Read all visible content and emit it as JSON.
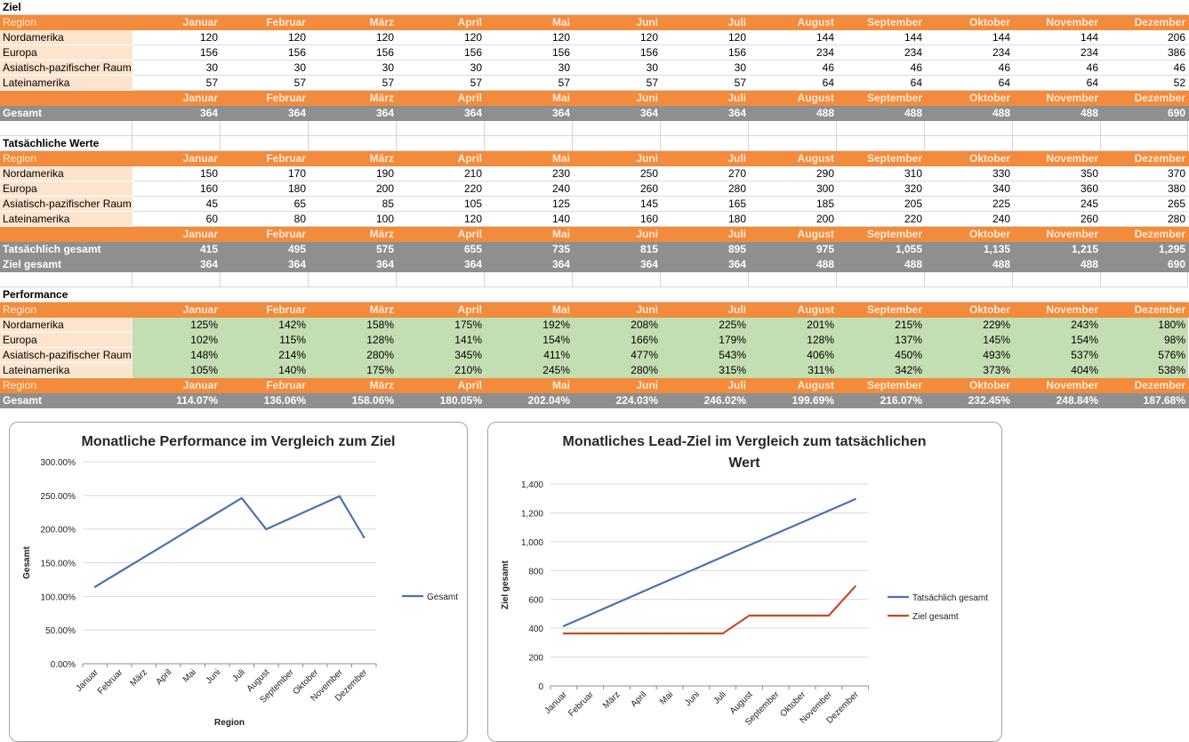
{
  "months": [
    "Januar",
    "Februar",
    "März",
    "April",
    "Mai",
    "Juni",
    "Juli",
    "August",
    "September",
    "Oktober",
    "November",
    "Dezember"
  ],
  "region_label": "Region",
  "ziel": {
    "title": "Ziel",
    "rows": [
      {
        "region": "Nordamerika",
        "values": [
          "120",
          "120",
          "120",
          "120",
          "120",
          "120",
          "120",
          "144",
          "144",
          "144",
          "144",
          "206"
        ]
      },
      {
        "region": "Europa",
        "values": [
          "156",
          "156",
          "156",
          "156",
          "156",
          "156",
          "156",
          "234",
          "234",
          "234",
          "234",
          "386"
        ]
      },
      {
        "region": "Asiatisch-pazifischer Raum",
        "values": [
          "30",
          "30",
          "30",
          "30",
          "30",
          "30",
          "30",
          "46",
          "46",
          "46",
          "46",
          "46"
        ]
      },
      {
        "region": "Lateinamerika",
        "values": [
          "57",
          "57",
          "57",
          "57",
          "57",
          "57",
          "57",
          "64",
          "64",
          "64",
          "64",
          "52"
        ]
      }
    ],
    "total_label": "Gesamt",
    "total": [
      "364",
      "364",
      "364",
      "364",
      "364",
      "364",
      "364",
      "488",
      "488",
      "488",
      "488",
      "690"
    ]
  },
  "actual": {
    "title": "Tatsächliche Werte",
    "rows": [
      {
        "region": "Nordamerika",
        "values": [
          "150",
          "170",
          "190",
          "210",
          "230",
          "250",
          "270",
          "290",
          "310",
          "330",
          "350",
          "370"
        ]
      },
      {
        "region": "Europa",
        "values": [
          "160",
          "180",
          "200",
          "220",
          "240",
          "260",
          "280",
          "300",
          "320",
          "340",
          "360",
          "380"
        ]
      },
      {
        "region": "Asiatisch-pazifischer Raum",
        "values": [
          "45",
          "65",
          "85",
          "105",
          "125",
          "145",
          "165",
          "185",
          "205",
          "225",
          "245",
          "265"
        ]
      },
      {
        "region": "Lateinamerika",
        "values": [
          "60",
          "80",
          "100",
          "120",
          "140",
          "160",
          "180",
          "200",
          "220",
          "240",
          "260",
          "280"
        ]
      }
    ],
    "total_actual_label": "Tatsächlich gesamt",
    "total_actual": [
      "415",
      "495",
      "575",
      "655",
      "735",
      "815",
      "895",
      "975",
      "1,055",
      "1,135",
      "1,215",
      "1,295"
    ],
    "total_target_label": "Ziel gesamt",
    "total_target": [
      "364",
      "364",
      "364",
      "364",
      "364",
      "364",
      "364",
      "488",
      "488",
      "488",
      "488",
      "690"
    ]
  },
  "performance": {
    "title": "Performance",
    "rows": [
      {
        "region": "Nordamerika",
        "values": [
          "125%",
          "142%",
          "158%",
          "175%",
          "192%",
          "208%",
          "225%",
          "201%",
          "215%",
          "229%",
          "243%",
          "180%"
        ]
      },
      {
        "region": "Europa",
        "values": [
          "102%",
          "115%",
          "128%",
          "141%",
          "154%",
          "166%",
          "179%",
          "128%",
          "137%",
          "145%",
          "154%",
          "98%"
        ]
      },
      {
        "region": "Asiatisch-pazifischer Raum",
        "values": [
          "148%",
          "214%",
          "280%",
          "345%",
          "411%",
          "477%",
          "543%",
          "406%",
          "450%",
          "493%",
          "537%",
          "576%"
        ]
      },
      {
        "region": "Lateinamerika",
        "values": [
          "105%",
          "140%",
          "175%",
          "210%",
          "245%",
          "280%",
          "315%",
          "311%",
          "342%",
          "373%",
          "404%",
          "538%"
        ]
      }
    ],
    "total_label": "Gesamt",
    "total": [
      "114.07%",
      "136.06%",
      "158.06%",
      "180.05%",
      "202.04%",
      "224.03%",
      "246.02%",
      "199.69%",
      "216.07%",
      "232.45%",
      "248.84%",
      "187.68%"
    ]
  },
  "chart_data": [
    {
      "type": "line",
      "title": "Monatliche Performance im Vergleich zum Ziel",
      "xlabel": "Region",
      "ylabel": "Gesamt",
      "categories": [
        "Januar",
        "Februar",
        "März",
        "April",
        "Mai",
        "Juni",
        "Juli",
        "August",
        "September",
        "Oktober",
        "November",
        "Dezember"
      ],
      "series": [
        {
          "name": "Gesamt",
          "color": "#4a72ad",
          "values": [
            114.07,
            136.06,
            158.06,
            180.05,
            202.04,
            224.03,
            246.02,
            199.69,
            216.07,
            232.45,
            248.84,
            187.68
          ]
        }
      ],
      "ylim": [
        0,
        300
      ],
      "yticks": [
        "0.00%",
        "50.00%",
        "100.00%",
        "150.00%",
        "200.00%",
        "250.00%",
        "300.00%"
      ],
      "grid": true,
      "legend": "right"
    },
    {
      "type": "line",
      "title": "Monatliches Lead-Ziel im Vergleich zum tatsächlichen Wert",
      "xlabel": "",
      "ylabel": "Ziel gesamt",
      "categories": [
        "Januar",
        "Februar",
        "März",
        "April",
        "Mai",
        "Juni",
        "Juli",
        "August",
        "September",
        "Oktober",
        "November",
        "Dezember"
      ],
      "series": [
        {
          "name": "Tatsächlich gesamt",
          "color": "#4a72ad",
          "values": [
            415,
            495,
            575,
            655,
            735,
            815,
            895,
            975,
            1055,
            1135,
            1215,
            1295
          ]
        },
        {
          "name": "Ziel gesamt",
          "color": "#c84a23",
          "values": [
            364,
            364,
            364,
            364,
            364,
            364,
            364,
            488,
            488,
            488,
            488,
            690
          ]
        }
      ],
      "ylim": [
        0,
        1400
      ],
      "yticks": [
        "0",
        "200",
        "400",
        "600",
        "800",
        "1,000",
        "1,200",
        "1,400"
      ],
      "grid": true,
      "legend": "right"
    }
  ]
}
